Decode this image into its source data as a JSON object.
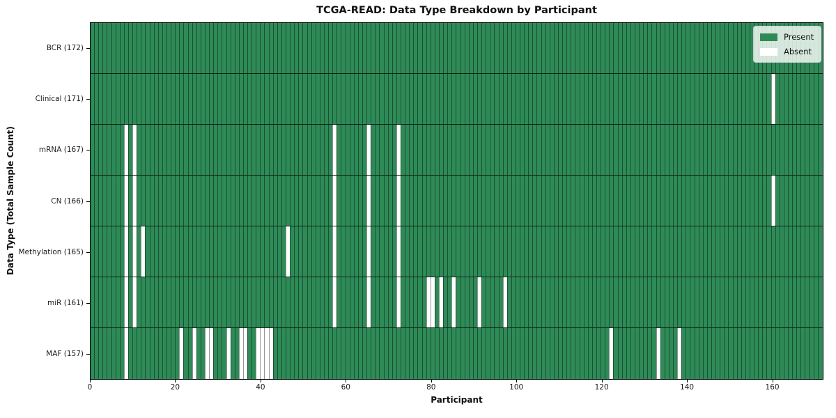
{
  "chart_data": {
    "type": "heatmap",
    "title": "TCGA-READ: Data Type Breakdown by Participant",
    "xlabel": "Participant",
    "ylabel": "Data Type (Total Sample Count)",
    "n_participants": 172,
    "xlim": [
      0,
      172
    ],
    "x_ticks": [
      0,
      20,
      40,
      60,
      80,
      100,
      120,
      140,
      160
    ],
    "grid": "cell-edges",
    "legend_position": "upper right",
    "legend": [
      {
        "label": "Present",
        "color": "#2e8b57"
      },
      {
        "label": "Absent",
        "color": "#ffffff"
      }
    ],
    "colors": {
      "present": "#2e8b57",
      "absent": "#ffffff",
      "cell_edge": "rgba(0,0,0,0.42)",
      "row_separator": "rgba(0,0,0,0.75)",
      "spine": "#000000"
    },
    "rows": [
      {
        "label": "BCR (172)",
        "data_type": "BCR",
        "total_samples": 172,
        "absent_participants": []
      },
      {
        "label": "Clinical (171)",
        "data_type": "Clinical",
        "total_samples": 171,
        "absent_participants": [
          160
        ]
      },
      {
        "label": "mRNA (167)",
        "data_type": "mRNA",
        "total_samples": 167,
        "absent_participants": [
          8,
          10,
          57,
          65,
          72
        ]
      },
      {
        "label": "CN (166)",
        "data_type": "CN",
        "total_samples": 166,
        "absent_participants": [
          8,
          10,
          57,
          65,
          72,
          160
        ]
      },
      {
        "label": "Methylation (165)",
        "data_type": "Methylation",
        "total_samples": 165,
        "absent_participants": [
          8,
          10,
          12,
          46,
          57,
          65,
          72
        ]
      },
      {
        "label": "miR (161)",
        "data_type": "miR",
        "total_samples": 161,
        "absent_participants": [
          8,
          10,
          57,
          65,
          72,
          79,
          80,
          82,
          85,
          91,
          97
        ]
      },
      {
        "label": "MAF (157)",
        "data_type": "MAF",
        "total_samples": 157,
        "absent_participants": [
          8,
          21,
          24,
          27,
          28,
          32,
          35,
          36,
          39,
          40,
          41,
          42,
          122,
          133,
          138
        ]
      }
    ]
  }
}
